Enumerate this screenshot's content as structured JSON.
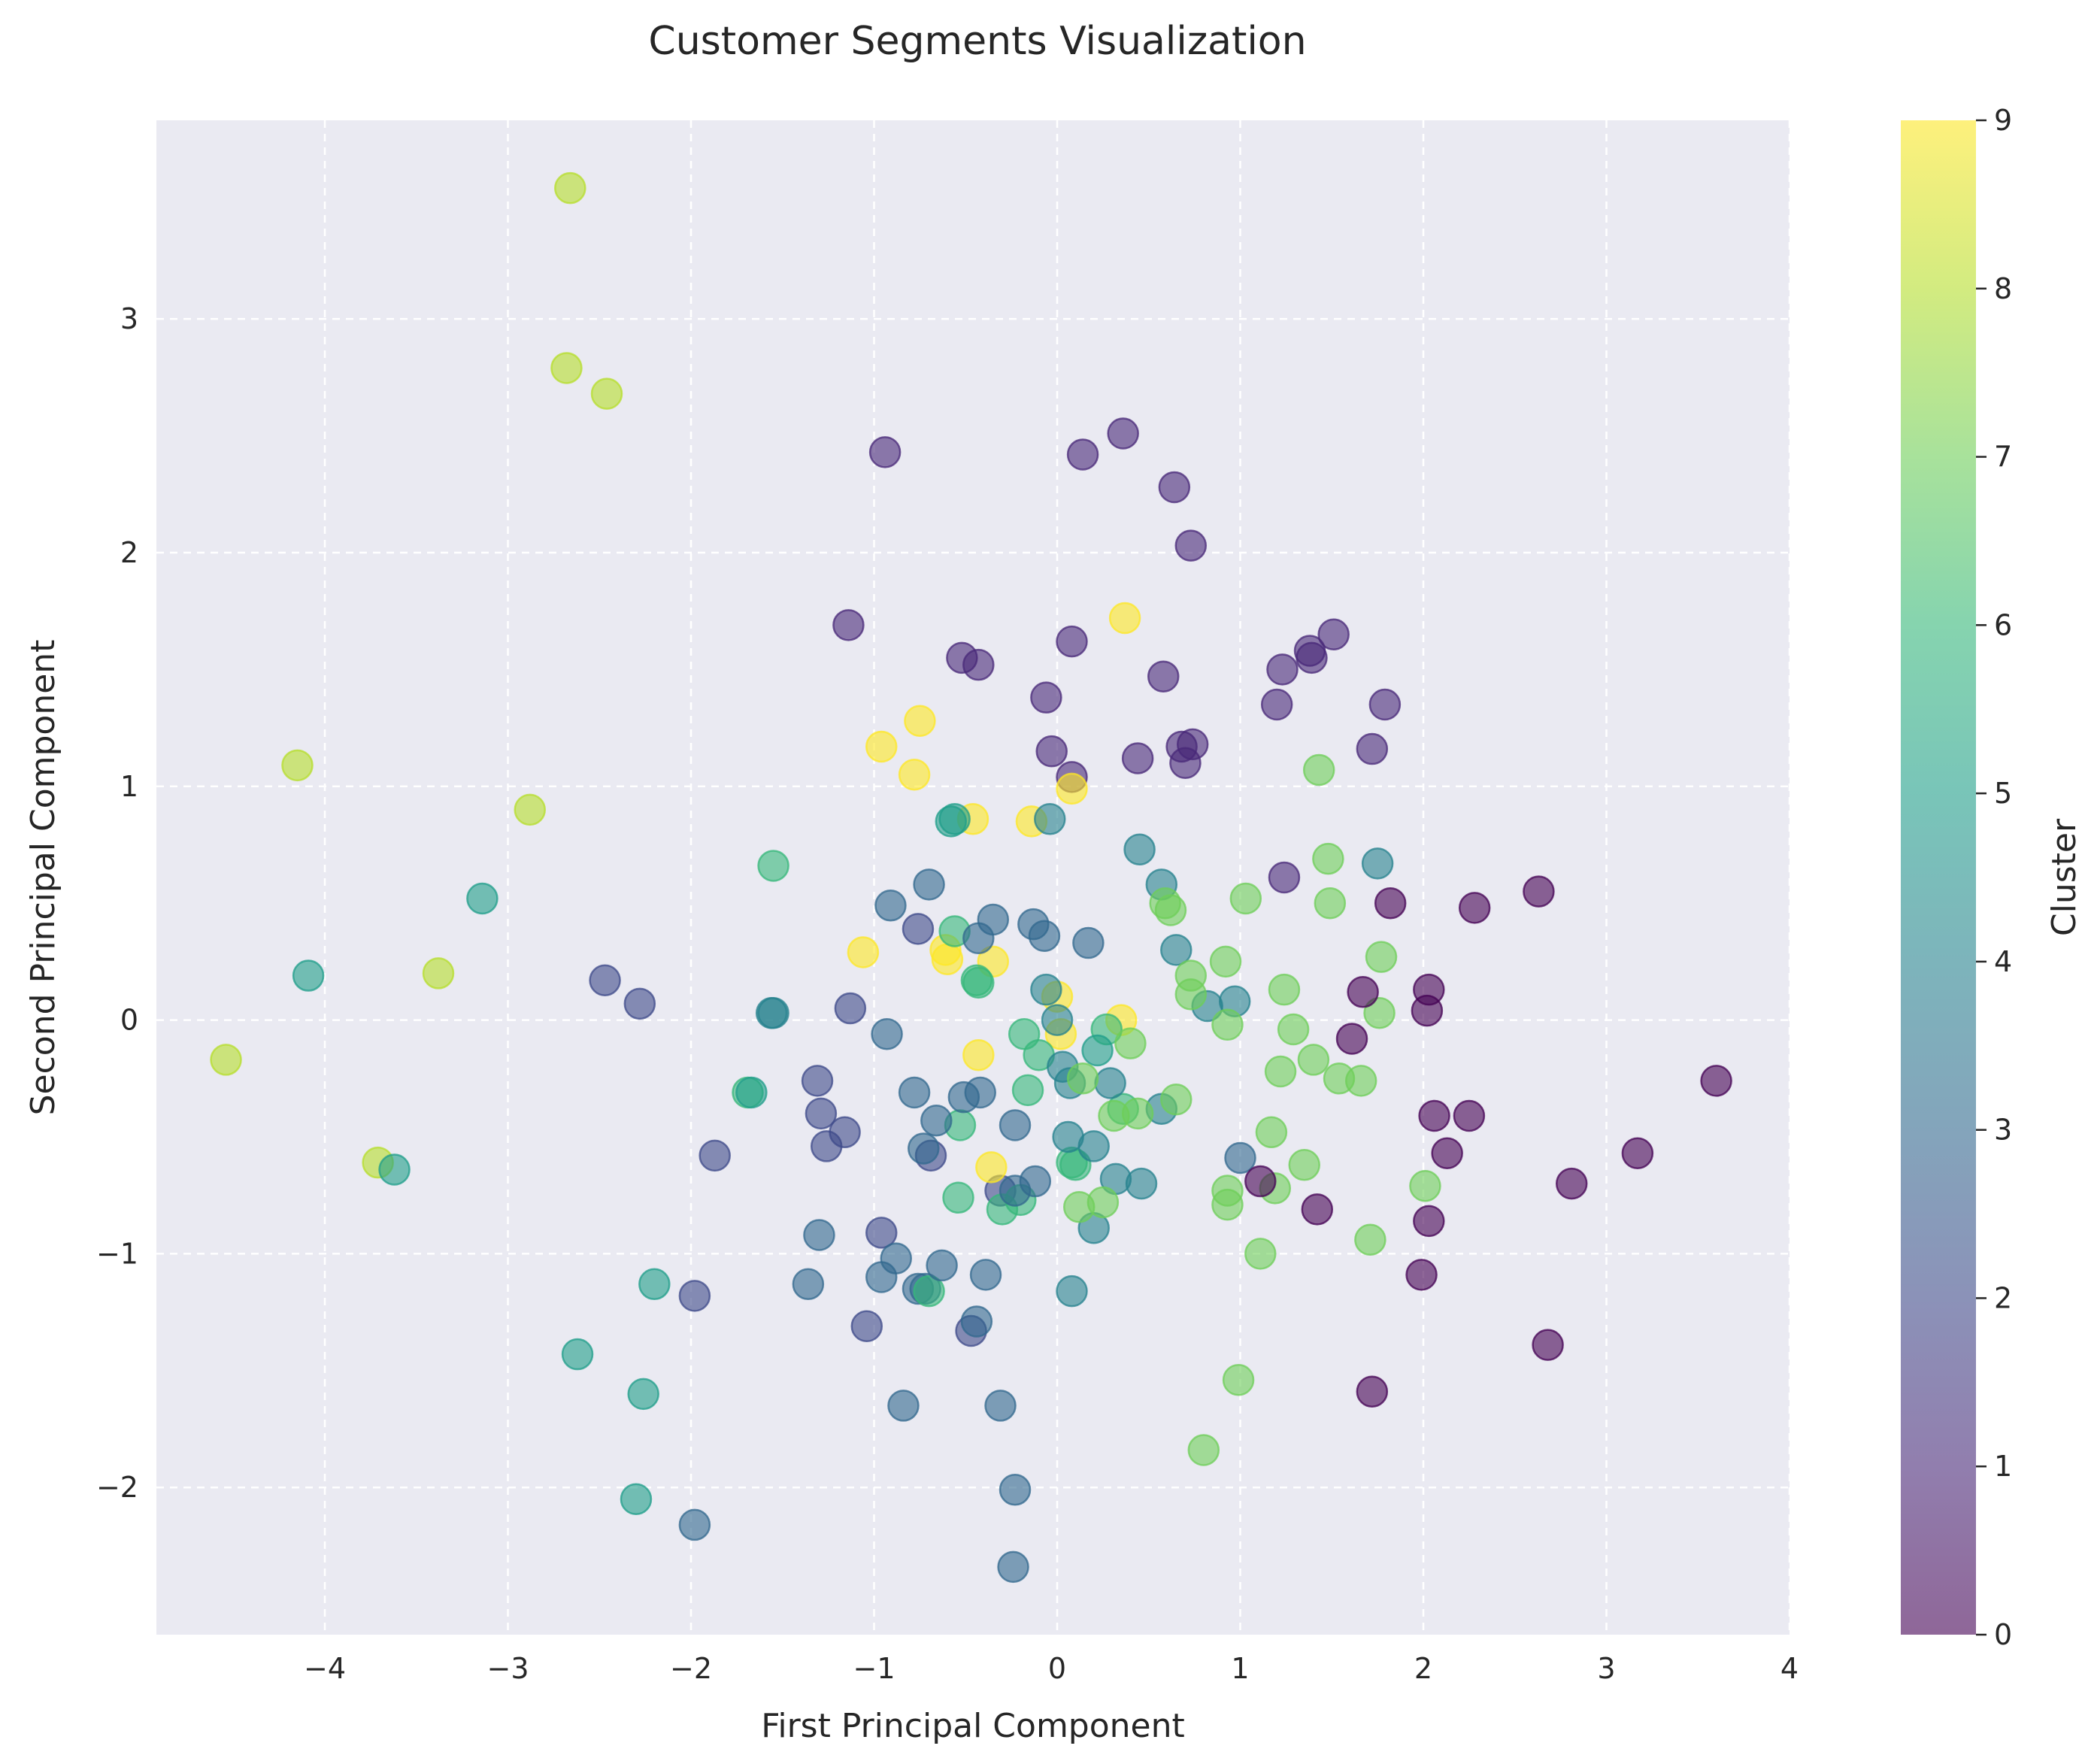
{
  "chart_data": {
    "type": "scatter",
    "title": "Customer Segments Visualization",
    "xlabel": "First Principal Component",
    "ylabel": "Second Principal Component",
    "xlim": [
      -4.92,
      4.0
    ],
    "ylim": [
      -2.63,
      3.85
    ],
    "x_ticks": [
      -4,
      -3,
      -2,
      -1,
      0,
      1,
      2,
      3,
      4
    ],
    "y_ticks": [
      -2,
      -1,
      0,
      1,
      2,
      3
    ],
    "grid": true,
    "colorbar": {
      "label": "Cluster",
      "min": 0,
      "max": 9,
      "ticks": [
        0,
        1,
        2,
        3,
        4,
        5,
        6,
        7,
        8,
        9
      ],
      "colormap": "viridis"
    },
    "point_alpha": 0.6,
    "background_color": "#eaeaf2",
    "points": [
      {
        "x": -2.66,
        "y": 3.56,
        "c": 8
      },
      {
        "x": -2.68,
        "y": 2.79,
        "c": 8
      },
      {
        "x": -2.46,
        "y": 2.68,
        "c": 8
      },
      {
        "x": -4.15,
        "y": 1.09,
        "c": 8
      },
      {
        "x": -2.88,
        "y": 0.9,
        "c": 8
      },
      {
        "x": -3.38,
        "y": 0.2,
        "c": 8
      },
      {
        "x": -4.54,
        "y": -0.17,
        "c": 8
      },
      {
        "x": -3.71,
        "y": -0.61,
        "c": 8
      },
      {
        "x": -3.14,
        "y": 0.52,
        "c": 5
      },
      {
        "x": -4.09,
        "y": 0.19,
        "c": 5
      },
      {
        "x": -3.62,
        "y": -0.64,
        "c": 5
      },
      {
        "x": -2.62,
        "y": -1.43,
        "c": 5
      },
      {
        "x": -2.26,
        "y": -1.6,
        "c": 5
      },
      {
        "x": -2.3,
        "y": -2.05,
        "c": 5
      },
      {
        "x": -2.2,
        "y": -1.13,
        "c": 5
      },
      {
        "x": -1.55,
        "y": 0.66,
        "c": 6
      },
      {
        "x": -1.56,
        "y": 0.03,
        "c": 4
      },
      {
        "x": -1.55,
        "y": 0.03,
        "c": 4
      },
      {
        "x": -1.69,
        "y": -0.31,
        "c": 6
      },
      {
        "x": -1.67,
        "y": -0.31,
        "c": 5
      },
      {
        "x": -2.47,
        "y": 0.17,
        "c": 2
      },
      {
        "x": -2.28,
        "y": 0.07,
        "c": 2
      },
      {
        "x": -1.87,
        "y": -0.58,
        "c": 2
      },
      {
        "x": -1.98,
        "y": -1.18,
        "c": 2
      },
      {
        "x": -1.98,
        "y": -2.16,
        "c": 3
      },
      {
        "x": -1.31,
        "y": -0.26,
        "c": 2
      },
      {
        "x": -1.29,
        "y": -0.4,
        "c": 2
      },
      {
        "x": -1.26,
        "y": -0.54,
        "c": 2
      },
      {
        "x": -1.16,
        "y": -0.48,
        "c": 2
      },
      {
        "x": -1.13,
        "y": 0.05,
        "c": 2
      },
      {
        "x": -1.3,
        "y": -0.92,
        "c": 3
      },
      {
        "x": -1.36,
        "y": -1.13,
        "c": 3
      },
      {
        "x": -1.04,
        "y": -1.31,
        "c": 2
      },
      {
        "x": -0.96,
        "y": -0.91,
        "c": 2
      },
      {
        "x": -0.96,
        "y": -1.1,
        "c": 3
      },
      {
        "x": -0.88,
        "y": -1.02,
        "c": 3
      },
      {
        "x": -0.84,
        "y": -1.65,
        "c": 3
      },
      {
        "x": -0.76,
        "y": -1.15,
        "c": 3
      },
      {
        "x": -0.72,
        "y": -1.15,
        "c": 3
      },
      {
        "x": -0.7,
        "y": -1.16,
        "c": 6
      },
      {
        "x": -0.63,
        "y": -1.05,
        "c": 3
      },
      {
        "x": -0.47,
        "y": -1.33,
        "c": 2
      },
      {
        "x": -0.44,
        "y": -1.29,
        "c": 3
      },
      {
        "x": -0.39,
        "y": -1.09,
        "c": 3
      },
      {
        "x": -0.31,
        "y": -1.65,
        "c": 3
      },
      {
        "x": -0.23,
        "y": -2.01,
        "c": 3
      },
      {
        "x": -0.24,
        "y": -2.34,
        "c": 3
      },
      {
        "x": -0.94,
        "y": 2.43,
        "c": 1
      },
      {
        "x": -1.14,
        "y": 1.69,
        "c": 1
      },
      {
        "x": -0.52,
        "y": 1.55,
        "c": 1
      },
      {
        "x": -0.43,
        "y": 1.52,
        "c": 1
      },
      {
        "x": -0.06,
        "y": 1.38,
        "c": 1
      },
      {
        "x": -0.03,
        "y": 1.15,
        "c": 1
      },
      {
        "x": 0.08,
        "y": 1.04,
        "c": 1
      },
      {
        "x": 0.08,
        "y": 1.62,
        "c": 1
      },
      {
        "x": 0.14,
        "y": 2.42,
        "c": 1
      },
      {
        "x": 0.36,
        "y": 2.51,
        "c": 1
      },
      {
        "x": 0.64,
        "y": 2.28,
        "c": 1
      },
      {
        "x": 0.73,
        "y": 2.03,
        "c": 1
      },
      {
        "x": 0.58,
        "y": 1.47,
        "c": 1
      },
      {
        "x": 0.44,
        "y": 1.12,
        "c": 1
      },
      {
        "x": 0.68,
        "y": 1.17,
        "c": 1
      },
      {
        "x": 0.74,
        "y": 1.18,
        "c": 1
      },
      {
        "x": 0.7,
        "y": 1.1,
        "c": 1
      },
      {
        "x": 1.2,
        "y": 1.35,
        "c": 1
      },
      {
        "x": 1.23,
        "y": 1.5,
        "c": 1
      },
      {
        "x": 1.38,
        "y": 1.58,
        "c": 1
      },
      {
        "x": 1.39,
        "y": 1.55,
        "c": 1
      },
      {
        "x": 1.51,
        "y": 1.65,
        "c": 1
      },
      {
        "x": 1.79,
        "y": 1.35,
        "c": 1
      },
      {
        "x": 1.72,
        "y": 1.16,
        "c": 1
      },
      {
        "x": 1.24,
        "y": 0.61,
        "c": 1
      },
      {
        "x": -0.76,
        "y": 0.39,
        "c": 2
      },
      {
        "x": -0.31,
        "y": -0.73,
        "c": 2
      },
      {
        "x": -0.69,
        "y": -0.58,
        "c": 2
      },
      {
        "x": -0.96,
        "y": 1.17,
        "c": 9
      },
      {
        "x": -0.75,
        "y": 1.28,
        "c": 9
      },
      {
        "x": -0.78,
        "y": 1.05,
        "c": 9
      },
      {
        "x": -0.46,
        "y": 0.86,
        "c": 9
      },
      {
        "x": -0.14,
        "y": 0.85,
        "c": 9
      },
      {
        "x": 0.08,
        "y": 0.99,
        "c": 9
      },
      {
        "x": 0.37,
        "y": 1.72,
        "c": 9
      },
      {
        "x": -1.06,
        "y": 0.29,
        "c": 9
      },
      {
        "x": -0.61,
        "y": 0.3,
        "c": 9
      },
      {
        "x": -0.6,
        "y": 0.26,
        "c": 9
      },
      {
        "x": -0.35,
        "y": 0.25,
        "c": 9
      },
      {
        "x": 0.0,
        "y": 0.1,
        "c": 9
      },
      {
        "x": 0.35,
        "y": 0.0,
        "c": 9
      },
      {
        "x": 0.02,
        "y": -0.06,
        "c": 9
      },
      {
        "x": -0.43,
        "y": -0.15,
        "c": 9
      },
      {
        "x": -0.36,
        "y": -0.63,
        "c": 9
      },
      {
        "x": -0.58,
        "y": 0.85,
        "c": 5
      },
      {
        "x": -0.56,
        "y": 0.86,
        "c": 5
      },
      {
        "x": -0.04,
        "y": 0.86,
        "c": 4
      },
      {
        "x": -0.56,
        "y": 0.38,
        "c": 6
      },
      {
        "x": -0.44,
        "y": 0.17,
        "c": 6
      },
      {
        "x": -0.43,
        "y": 0.16,
        "c": 6
      },
      {
        "x": -0.53,
        "y": -0.45,
        "c": 6
      },
      {
        "x": -0.54,
        "y": -0.76,
        "c": 6
      },
      {
        "x": -0.3,
        "y": -0.81,
        "c": 6
      },
      {
        "x": -0.2,
        "y": -0.77,
        "c": 6
      },
      {
        "x": -0.18,
        "y": -0.06,
        "c": 6
      },
      {
        "x": -0.16,
        "y": -0.3,
        "c": 6
      },
      {
        "x": -0.1,
        "y": -0.15,
        "c": 6
      },
      {
        "x": 0.08,
        "y": -0.61,
        "c": 6
      },
      {
        "x": 0.1,
        "y": -0.62,
        "c": 6
      },
      {
        "x": 0.27,
        "y": -0.04,
        "c": 6
      },
      {
        "x": 0.36,
        "y": -0.38,
        "c": 6
      },
      {
        "x": 0.22,
        "y": -0.13,
        "c": 5
      },
      {
        "x": -0.91,
        "y": 0.49,
        "c": 3
      },
      {
        "x": -0.7,
        "y": 0.58,
        "c": 3
      },
      {
        "x": -0.35,
        "y": 0.43,
        "c": 3
      },
      {
        "x": -0.43,
        "y": 0.35,
        "c": 3
      },
      {
        "x": -0.13,
        "y": 0.41,
        "c": 3
      },
      {
        "x": -0.07,
        "y": 0.36,
        "c": 3
      },
      {
        "x": 0.17,
        "y": 0.33,
        "c": 3
      },
      {
        "x": 0.45,
        "y": 0.73,
        "c": 4
      },
      {
        "x": 0.57,
        "y": 0.58,
        "c": 4
      },
      {
        "x": 0.65,
        "y": 0.3,
        "c": 4
      },
      {
        "x": -0.06,
        "y": 0.13,
        "c": 4
      },
      {
        "x": 0.0,
        "y": 0.0,
        "c": 4
      },
      {
        "x": -0.93,
        "y": -0.06,
        "c": 3
      },
      {
        "x": -0.78,
        "y": -0.31,
        "c": 3
      },
      {
        "x": -0.66,
        "y": -0.43,
        "c": 3
      },
      {
        "x": -0.73,
        "y": -0.55,
        "c": 3
      },
      {
        "x": -0.51,
        "y": -0.33,
        "c": 3
      },
      {
        "x": -0.42,
        "y": -0.31,
        "c": 3
      },
      {
        "x": -0.23,
        "y": -0.45,
        "c": 3
      },
      {
        "x": -0.12,
        "y": -0.69,
        "c": 3
      },
      {
        "x": -0.23,
        "y": -0.73,
        "c": 3
      },
      {
        "x": 0.03,
        "y": -0.2,
        "c": 4
      },
      {
        "x": 0.07,
        "y": -0.27,
        "c": 4
      },
      {
        "x": 0.29,
        "y": -0.27,
        "c": 4
      },
      {
        "x": 0.06,
        "y": -0.5,
        "c": 4
      },
      {
        "x": 0.2,
        "y": -0.54,
        "c": 4
      },
      {
        "x": 0.32,
        "y": -0.68,
        "c": 4
      },
      {
        "x": 0.46,
        "y": -0.7,
        "c": 4
      },
      {
        "x": 0.2,
        "y": -0.89,
        "c": 4
      },
      {
        "x": 0.08,
        "y": -1.16,
        "c": 4
      },
      {
        "x": 0.57,
        "y": -0.38,
        "c": 4
      },
      {
        "x": 0.97,
        "y": 0.08,
        "c": 4
      },
      {
        "x": 0.82,
        "y": 0.06,
        "c": 4
      },
      {
        "x": 1.0,
        "y": -0.59,
        "c": 3
      },
      {
        "x": 1.75,
        "y": 0.67,
        "c": 4
      },
      {
        "x": 0.14,
        "y": -0.25,
        "c": 7
      },
      {
        "x": 0.31,
        "y": -0.41,
        "c": 7
      },
      {
        "x": 0.44,
        "y": -0.4,
        "c": 7
      },
      {
        "x": 0.4,
        "y": -0.1,
        "c": 7
      },
      {
        "x": 0.65,
        "y": -0.34,
        "c": 7
      },
      {
        "x": 0.12,
        "y": -0.8,
        "c": 7
      },
      {
        "x": 0.25,
        "y": -0.78,
        "c": 7
      },
      {
        "x": 0.59,
        "y": 0.5,
        "c": 7
      },
      {
        "x": 0.62,
        "y": 0.47,
        "c": 7
      },
      {
        "x": 0.73,
        "y": 0.19,
        "c": 7
      },
      {
        "x": 0.73,
        "y": 0.11,
        "c": 7
      },
      {
        "x": 0.92,
        "y": 0.25,
        "c": 7
      },
      {
        "x": 0.93,
        "y": -0.02,
        "c": 7
      },
      {
        "x": 1.03,
        "y": 0.52,
        "c": 7
      },
      {
        "x": 1.24,
        "y": 0.13,
        "c": 7
      },
      {
        "x": 1.29,
        "y": -0.04,
        "c": 7
      },
      {
        "x": 1.22,
        "y": -0.22,
        "c": 7
      },
      {
        "x": 1.4,
        "y": -0.17,
        "c": 7
      },
      {
        "x": 1.54,
        "y": -0.25,
        "c": 7
      },
      {
        "x": 1.66,
        "y": -0.26,
        "c": 7
      },
      {
        "x": 1.49,
        "y": 0.5,
        "c": 7
      },
      {
        "x": 1.48,
        "y": 0.69,
        "c": 7
      },
      {
        "x": 1.43,
        "y": 1.07,
        "c": 7
      },
      {
        "x": 1.77,
        "y": 0.27,
        "c": 7
      },
      {
        "x": 1.76,
        "y": 0.03,
        "c": 7
      },
      {
        "x": 1.17,
        "y": -0.48,
        "c": 7
      },
      {
        "x": 1.35,
        "y": -0.62,
        "c": 7
      },
      {
        "x": 1.19,
        "y": -0.72,
        "c": 7
      },
      {
        "x": 0.93,
        "y": -0.73,
        "c": 7
      },
      {
        "x": 0.93,
        "y": -0.79,
        "c": 7
      },
      {
        "x": 1.11,
        "y": -1.0,
        "c": 7
      },
      {
        "x": 1.71,
        "y": -0.94,
        "c": 7
      },
      {
        "x": 2.01,
        "y": -0.71,
        "c": 7
      },
      {
        "x": 0.99,
        "y": -1.54,
        "c": 7
      },
      {
        "x": 0.8,
        "y": -1.84,
        "c": 7
      },
      {
        "x": 1.67,
        "y": 0.12,
        "c": 0
      },
      {
        "x": 1.82,
        "y": 0.5,
        "c": 0
      },
      {
        "x": 2.03,
        "y": 0.13,
        "c": 0
      },
      {
        "x": 2.02,
        "y": 0.04,
        "c": 0
      },
      {
        "x": 1.61,
        "y": -0.08,
        "c": 0
      },
      {
        "x": 2.28,
        "y": 0.48,
        "c": 0
      },
      {
        "x": 2.63,
        "y": 0.55,
        "c": 0
      },
      {
        "x": 2.06,
        "y": -0.41,
        "c": 0
      },
      {
        "x": 2.25,
        "y": -0.41,
        "c": 0
      },
      {
        "x": 2.13,
        "y": -0.57,
        "c": 0
      },
      {
        "x": 2.81,
        "y": -0.7,
        "c": 0
      },
      {
        "x": 3.17,
        "y": -0.57,
        "c": 0
      },
      {
        "x": 3.6,
        "y": -0.26,
        "c": 0
      },
      {
        "x": 1.11,
        "y": -0.69,
        "c": 0
      },
      {
        "x": 1.42,
        "y": -0.81,
        "c": 0
      },
      {
        "x": 2.03,
        "y": -0.86,
        "c": 0
      },
      {
        "x": 1.99,
        "y": -1.09,
        "c": 0
      },
      {
        "x": 2.68,
        "y": -1.39,
        "c": 0
      },
      {
        "x": 1.72,
        "y": -1.59,
        "c": 0
      }
    ]
  }
}
